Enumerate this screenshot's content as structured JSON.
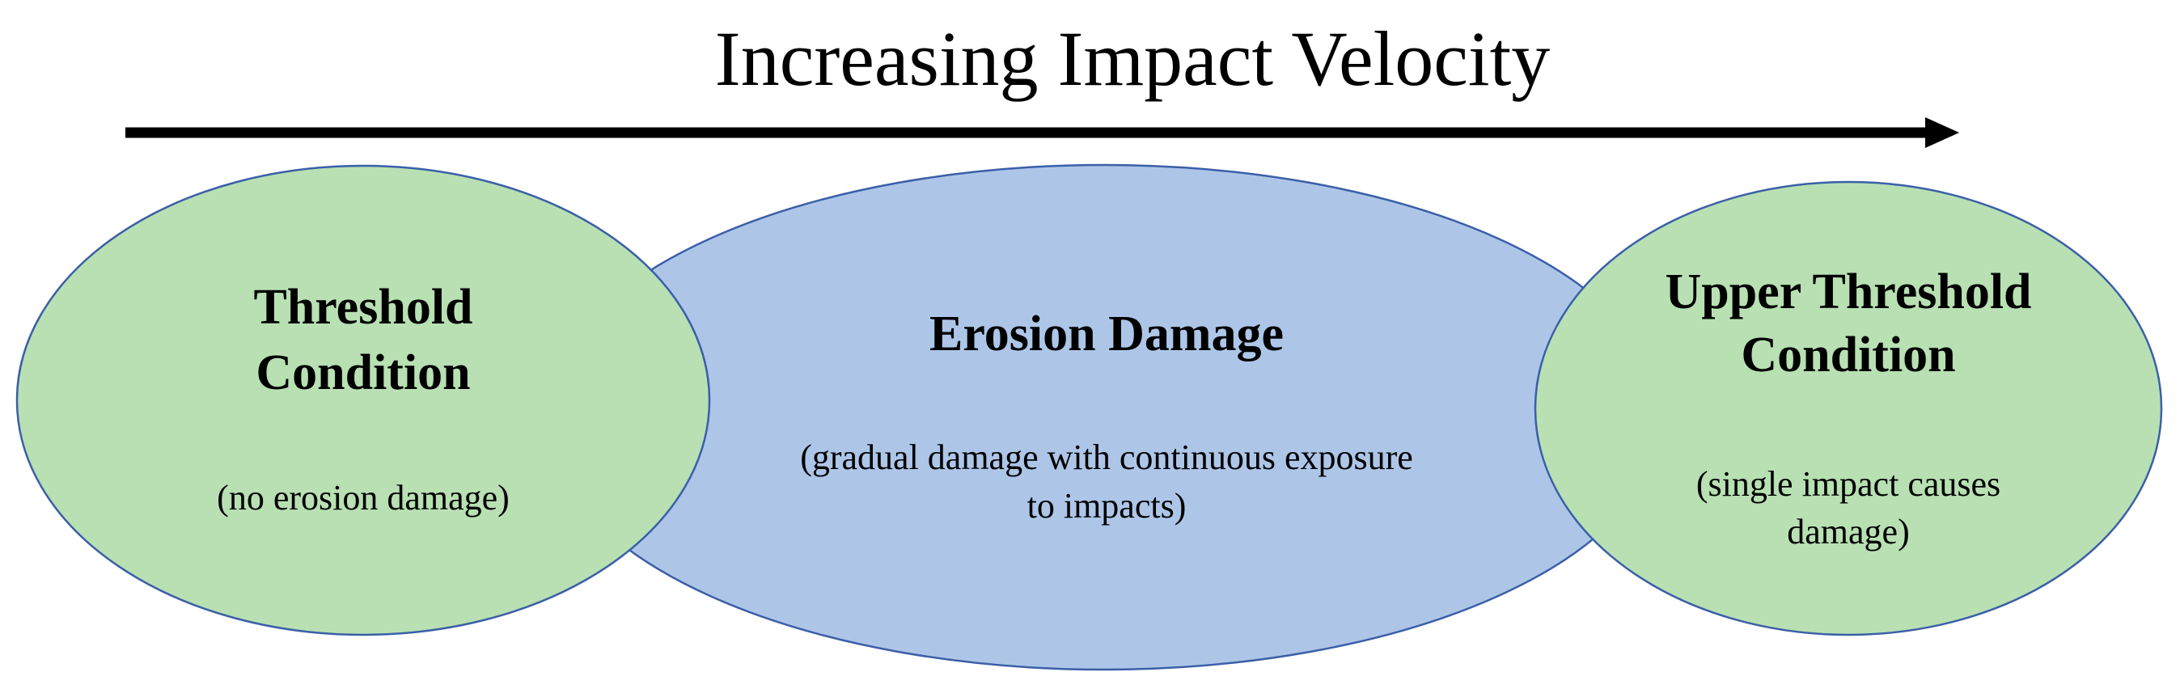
{
  "title": "Increasing Impact Velocity",
  "colors": {
    "threshold_fill": "#b8e0b3",
    "erosion_fill": "#adc6e8",
    "outline": "#3b5fa8",
    "arrow": "#000000"
  },
  "nodes": {
    "threshold": {
      "heading_line1": "Threshold",
      "heading_line2": "Condition",
      "description": "(no erosion damage)"
    },
    "erosion": {
      "heading": "Erosion Damage",
      "description_line1": "(gradual damage with continuous exposure",
      "description_line2": "to impacts)"
    },
    "upper_threshold": {
      "heading_line1": "Upper Threshold",
      "heading_line2": "Condition",
      "description_line1": "(single impact causes",
      "description_line2": "damage)"
    }
  }
}
